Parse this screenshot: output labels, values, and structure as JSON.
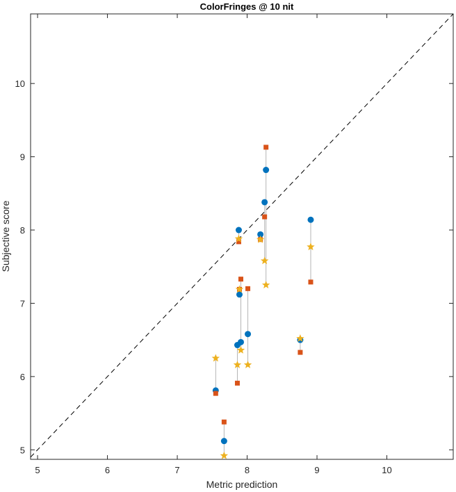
{
  "chart_data": {
    "type": "scatter",
    "title": "ColorFringes @ 10 nit",
    "xlabel": "Metric prediction",
    "ylabel": "Subjective score",
    "xlim": [
      4.9,
      10.95
    ],
    "ylim": [
      4.87,
      10.95
    ],
    "xticks": [
      5,
      6,
      7,
      8,
      9,
      10
    ],
    "yticks": [
      5,
      6,
      7,
      8,
      9,
      10
    ],
    "grid": false,
    "reference_line": {
      "style": "dashed",
      "from": [
        4.9,
        4.9
      ],
      "to": [
        10.95,
        10.95
      ],
      "color": "#000000"
    },
    "connector_color": "#b5b5b5",
    "series": [
      {
        "marker": "circle",
        "color": "#0072bd"
      },
      {
        "marker": "square",
        "color": "#d95319"
      },
      {
        "marker": "star",
        "color": "#edb120"
      }
    ],
    "groups": [
      {
        "x": 7.55,
        "y": [
          5.81,
          5.77,
          6.25
        ]
      },
      {
        "x": 7.67,
        "y": [
          5.12,
          5.38,
          4.92
        ]
      },
      {
        "x": 7.86,
        "y": [
          6.43,
          5.91,
          6.16
        ]
      },
      {
        "x": 7.88,
        "y": [
          8.0,
          7.84,
          7.88
        ]
      },
      {
        "x": 7.89,
        "y": [
          7.12,
          7.19,
          7.19
        ]
      },
      {
        "x": 7.91,
        "y": [
          6.47,
          7.33,
          6.36
        ]
      },
      {
        "x": 8.01,
        "y": [
          6.58,
          7.2,
          6.16
        ]
      },
      {
        "x": 8.19,
        "y": [
          7.94,
          7.87,
          7.87
        ]
      },
      {
        "x": 8.25,
        "y": [
          8.38,
          8.18,
          7.58
        ]
      },
      {
        "x": 8.27,
        "y": [
          8.82,
          9.13,
          7.25
        ]
      },
      {
        "x": 8.76,
        "y": [
          6.5,
          6.33,
          6.52
        ]
      },
      {
        "x": 8.91,
        "y": [
          8.14,
          7.29,
          7.77
        ]
      }
    ]
  }
}
